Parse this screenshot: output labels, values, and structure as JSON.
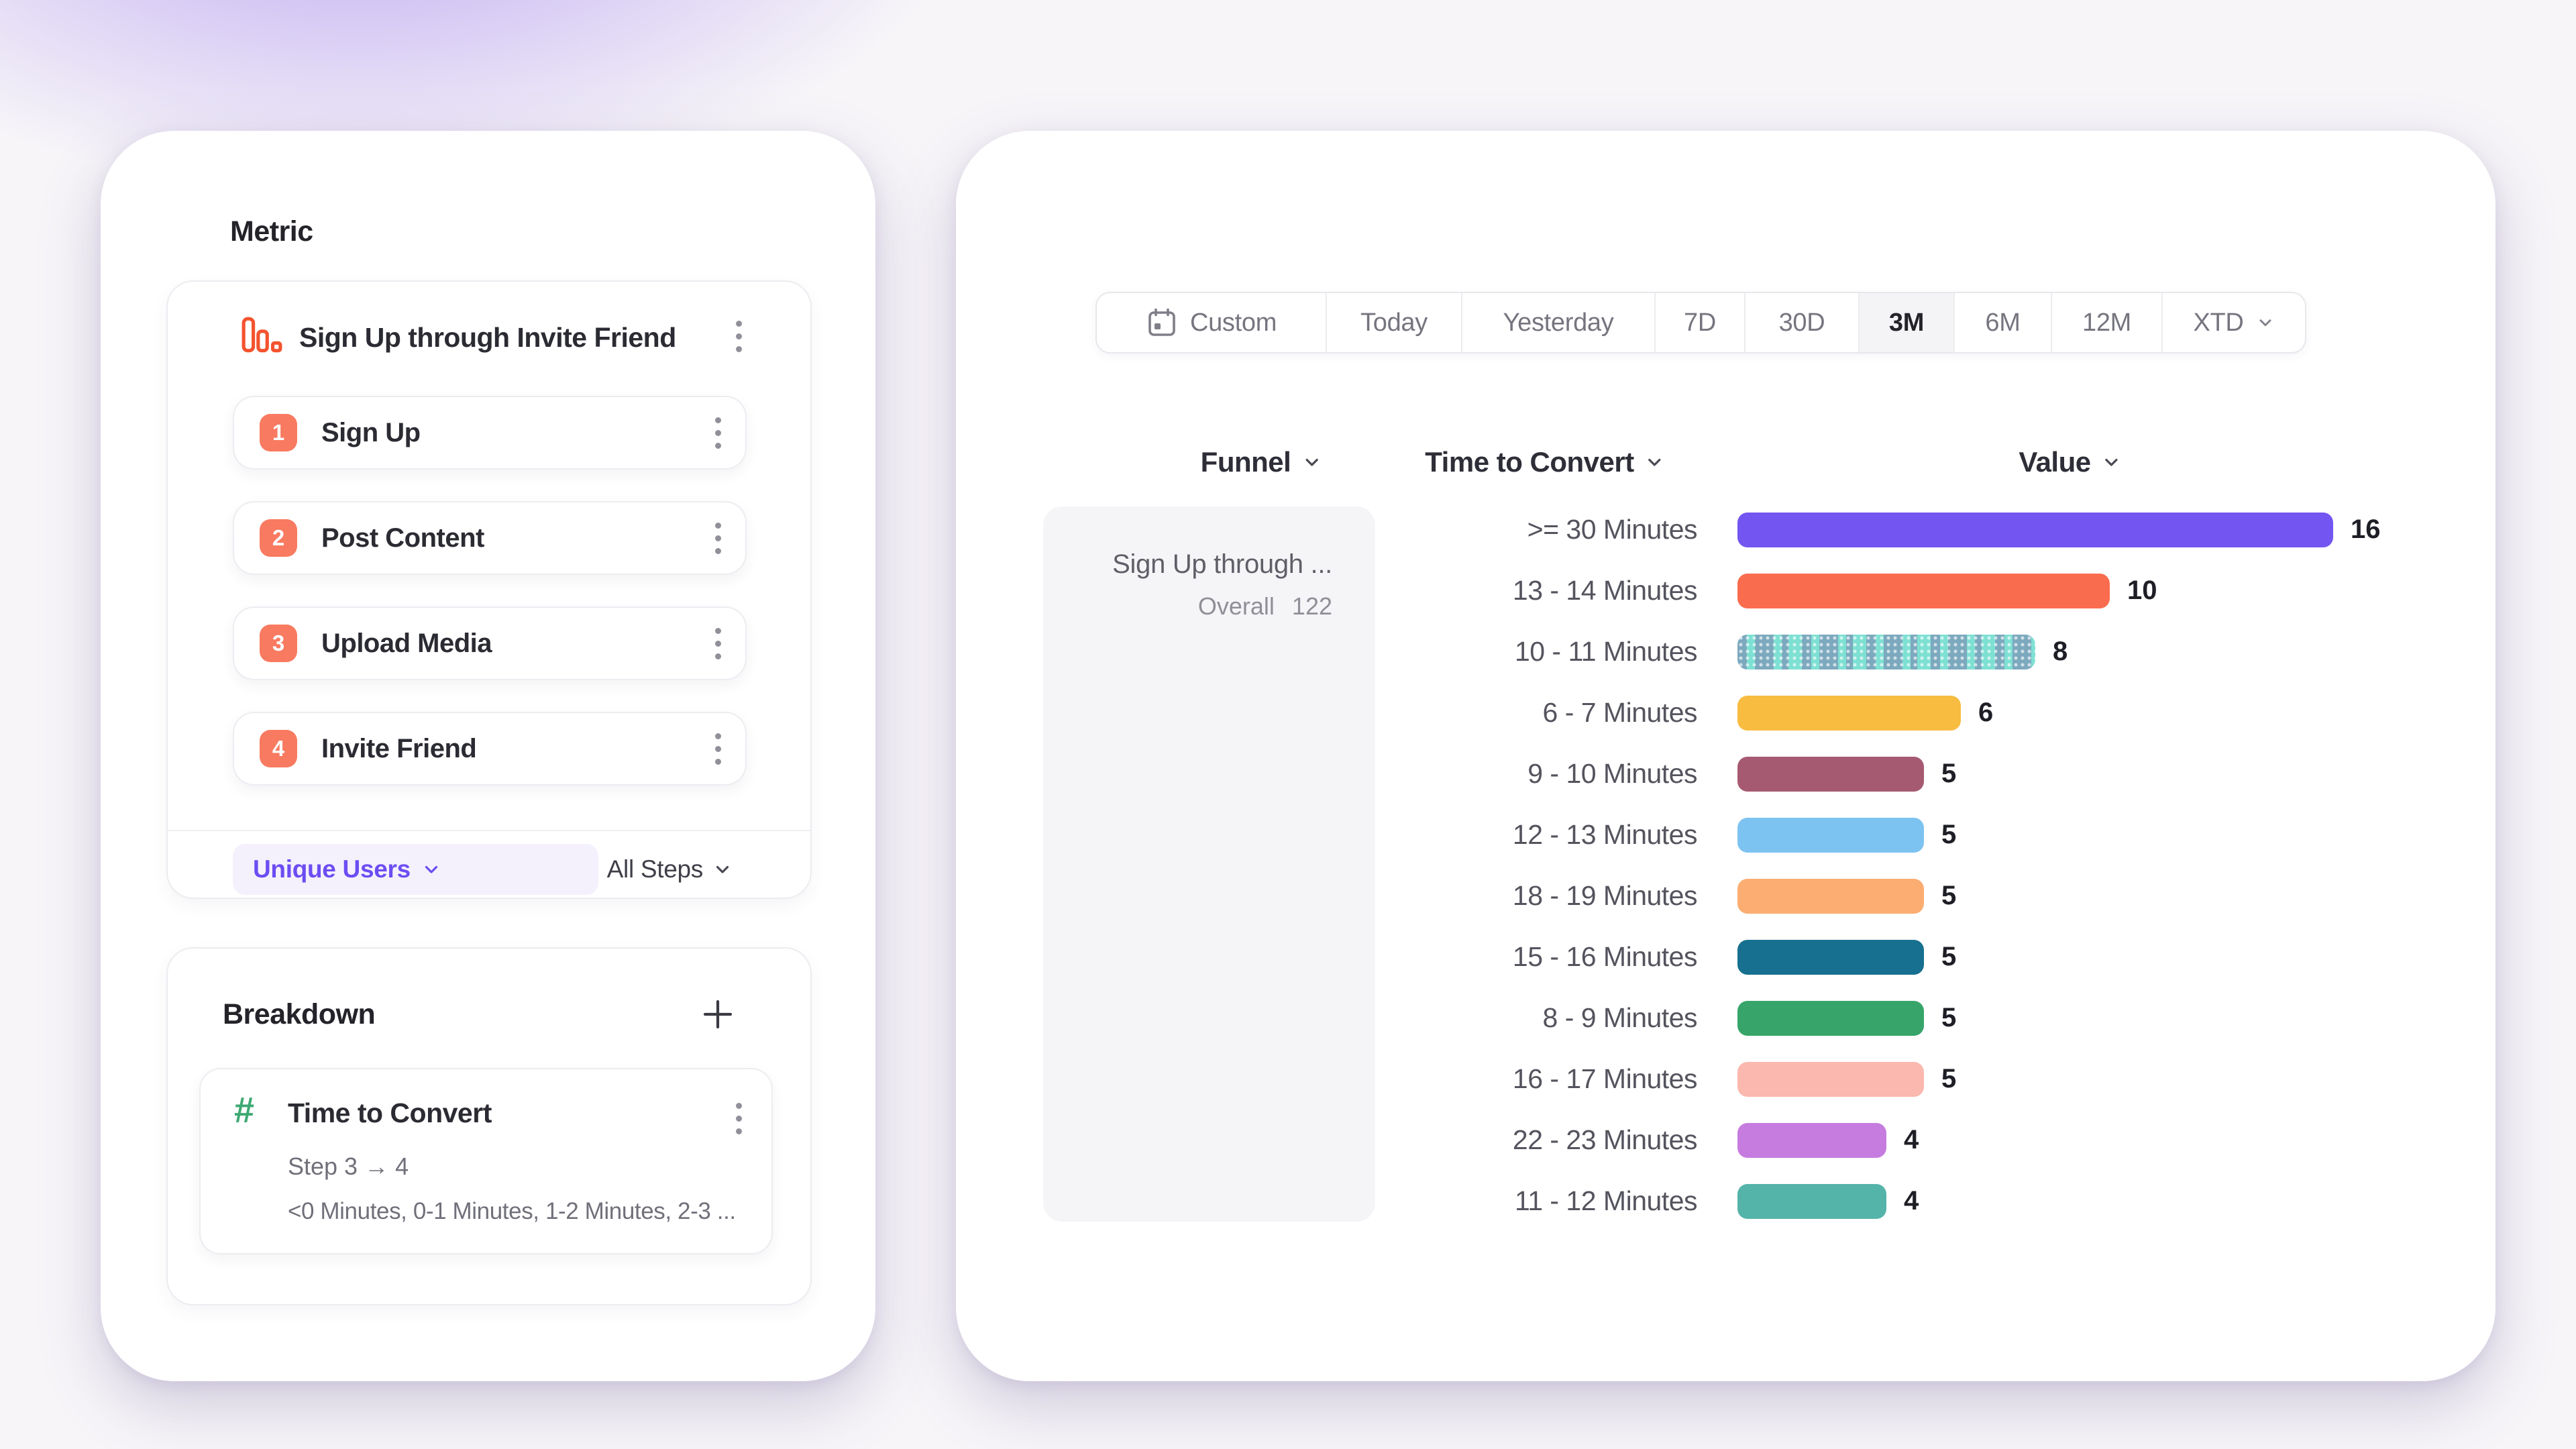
{
  "left_panel": {
    "metric_title": "Metric",
    "funnel": {
      "icon": "funnel-chart-icon",
      "icon_color": "#F4532E",
      "name": "Sign Up through Invite Friend",
      "steps": [
        {
          "number": "1",
          "label": "Sign Up"
        },
        {
          "number": "2",
          "label": "Post Content"
        },
        {
          "number": "3",
          "label": "Upload Media"
        },
        {
          "number": "4",
          "label": "Invite Friend"
        }
      ],
      "step_badge_color": "#F87A60",
      "measurement": "Unique Users",
      "measurement_color": "#6C4DF2",
      "scope": "All Steps"
    },
    "breakdown": {
      "title": "Breakdown",
      "item": {
        "icon": "number-property-icon",
        "icon_glyph": "#",
        "icon_color": "#3EA973",
        "name": "Time to Convert",
        "step_range": "Step 3 → 4",
        "buckets": "<0 Minutes, 0-1 Minutes, 1-2 Minutes, 2-3 ..."
      }
    }
  },
  "right_panel": {
    "date_picker": {
      "options": [
        {
          "label": "Custom",
          "icon": "calendar-icon"
        },
        {
          "label": "Today"
        },
        {
          "label": "Yesterday"
        },
        {
          "label": "7D"
        },
        {
          "label": "30D"
        },
        {
          "label": "3M",
          "selected": true
        },
        {
          "label": "6M"
        },
        {
          "label": "12M"
        },
        {
          "label": "XTD",
          "chevron": true
        }
      ],
      "selected": "3M"
    },
    "columns": {
      "funnel": "Funnel",
      "breakdown": "Time to Convert",
      "value": "Value"
    },
    "funnel_cell": {
      "title": "Sign Up through ...",
      "overall_label": "Overall",
      "overall_value": "122"
    }
  },
  "chart_data": {
    "type": "bar",
    "orientation": "horizontal",
    "categories": [
      ">= 30 Minutes",
      "13 - 14 Minutes",
      "10 - 11 Minutes",
      "6 - 7 Minutes",
      "9 - 10 Minutes",
      "12 - 13 Minutes",
      "18 - 19 Minutes",
      "15 - 16 Minutes",
      "8 - 9 Minutes",
      "16 - 17 Minutes",
      "22 - 23 Minutes",
      "11 - 12 Minutes"
    ],
    "values": [
      16,
      10,
      8,
      6,
      5,
      5,
      5,
      5,
      5,
      5,
      4,
      4
    ],
    "colors": [
      "#7355F1",
      "#FA6C4E",
      "#7EE0D3",
      "#F7BC40",
      "#A65A72",
      "#7DC3F1",
      "#FBAD72",
      "#17708F",
      "#37A56A",
      "#FBB8AE",
      "#C67CDF",
      "#55B4A9"
    ],
    "textured": [
      false,
      false,
      true,
      false,
      false,
      false,
      false,
      false,
      false,
      false,
      false,
      false
    ],
    "xlim": [
      0,
      16
    ],
    "legend": false,
    "gridlines": false,
    "value_labels_shown": true
  }
}
